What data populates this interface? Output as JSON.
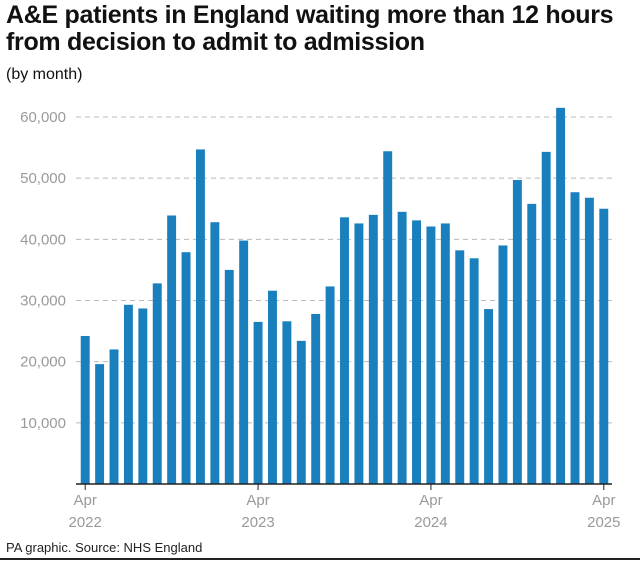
{
  "title": "A&E patients in England waiting more than 12 hours from decision to admit to admission",
  "subtitle": "(by month)",
  "source": "PA graphic. Source: NHS England",
  "colors": {
    "bar": "#1a7fbd",
    "grid": "#bbbbbb",
    "tick_text": "#9a9a9a",
    "axis": "#222222"
  },
  "chart_data": {
    "type": "bar",
    "ylim": [
      0,
      60000
    ],
    "grid": true,
    "yticks": [
      {
        "value": 10000,
        "label": "10,000"
      },
      {
        "value": 20000,
        "label": "20,000"
      },
      {
        "value": 30000,
        "label": "30,000"
      },
      {
        "value": 40000,
        "label": "40,000"
      },
      {
        "value": 50000,
        "label": "50,000"
      },
      {
        "value": 60000,
        "label": "60,000"
      }
    ],
    "xticks": [
      {
        "index": 0,
        "line1": "Apr",
        "line2": "2022"
      },
      {
        "index": 12,
        "line1": "Apr",
        "line2": "2023"
      },
      {
        "index": 24,
        "line1": "Apr",
        "line2": "2024"
      },
      {
        "index": 36,
        "line1": "Apr",
        "line2": "2025"
      }
    ],
    "categories": [
      "Apr 2022",
      "May 2022",
      "Jun 2022",
      "Jul 2022",
      "Aug 2022",
      "Sep 2022",
      "Oct 2022",
      "Nov 2022",
      "Dec 2022",
      "Jan 2023",
      "Feb 2023",
      "Mar 2023",
      "Apr 2023",
      "May 2023",
      "Jun 2023",
      "Jul 2023",
      "Aug 2023",
      "Sep 2023",
      "Oct 2023",
      "Nov 2023",
      "Dec 2023",
      "Jan 2024",
      "Feb 2024",
      "Mar 2024",
      "Apr 2024",
      "May 2024",
      "Jun 2024",
      "Jul 2024",
      "Aug 2024",
      "Sep 2024",
      "Oct 2024",
      "Nov 2024",
      "Dec 2024",
      "Jan 2025",
      "Feb 2025",
      "Mar 2025",
      "Apr 2025"
    ],
    "values": [
      24200,
      19600,
      22000,
      29300,
      28700,
      32800,
      43900,
      37900,
      54700,
      42800,
      35000,
      39800,
      26500,
      31600,
      26600,
      23400,
      27800,
      32300,
      43600,
      42600,
      44000,
      54400,
      44500,
      43100,
      42100,
      42600,
      38200,
      36900,
      28600,
      39000,
      49700,
      45800,
      54300,
      61500,
      47700,
      46800,
      45000
    ]
  }
}
